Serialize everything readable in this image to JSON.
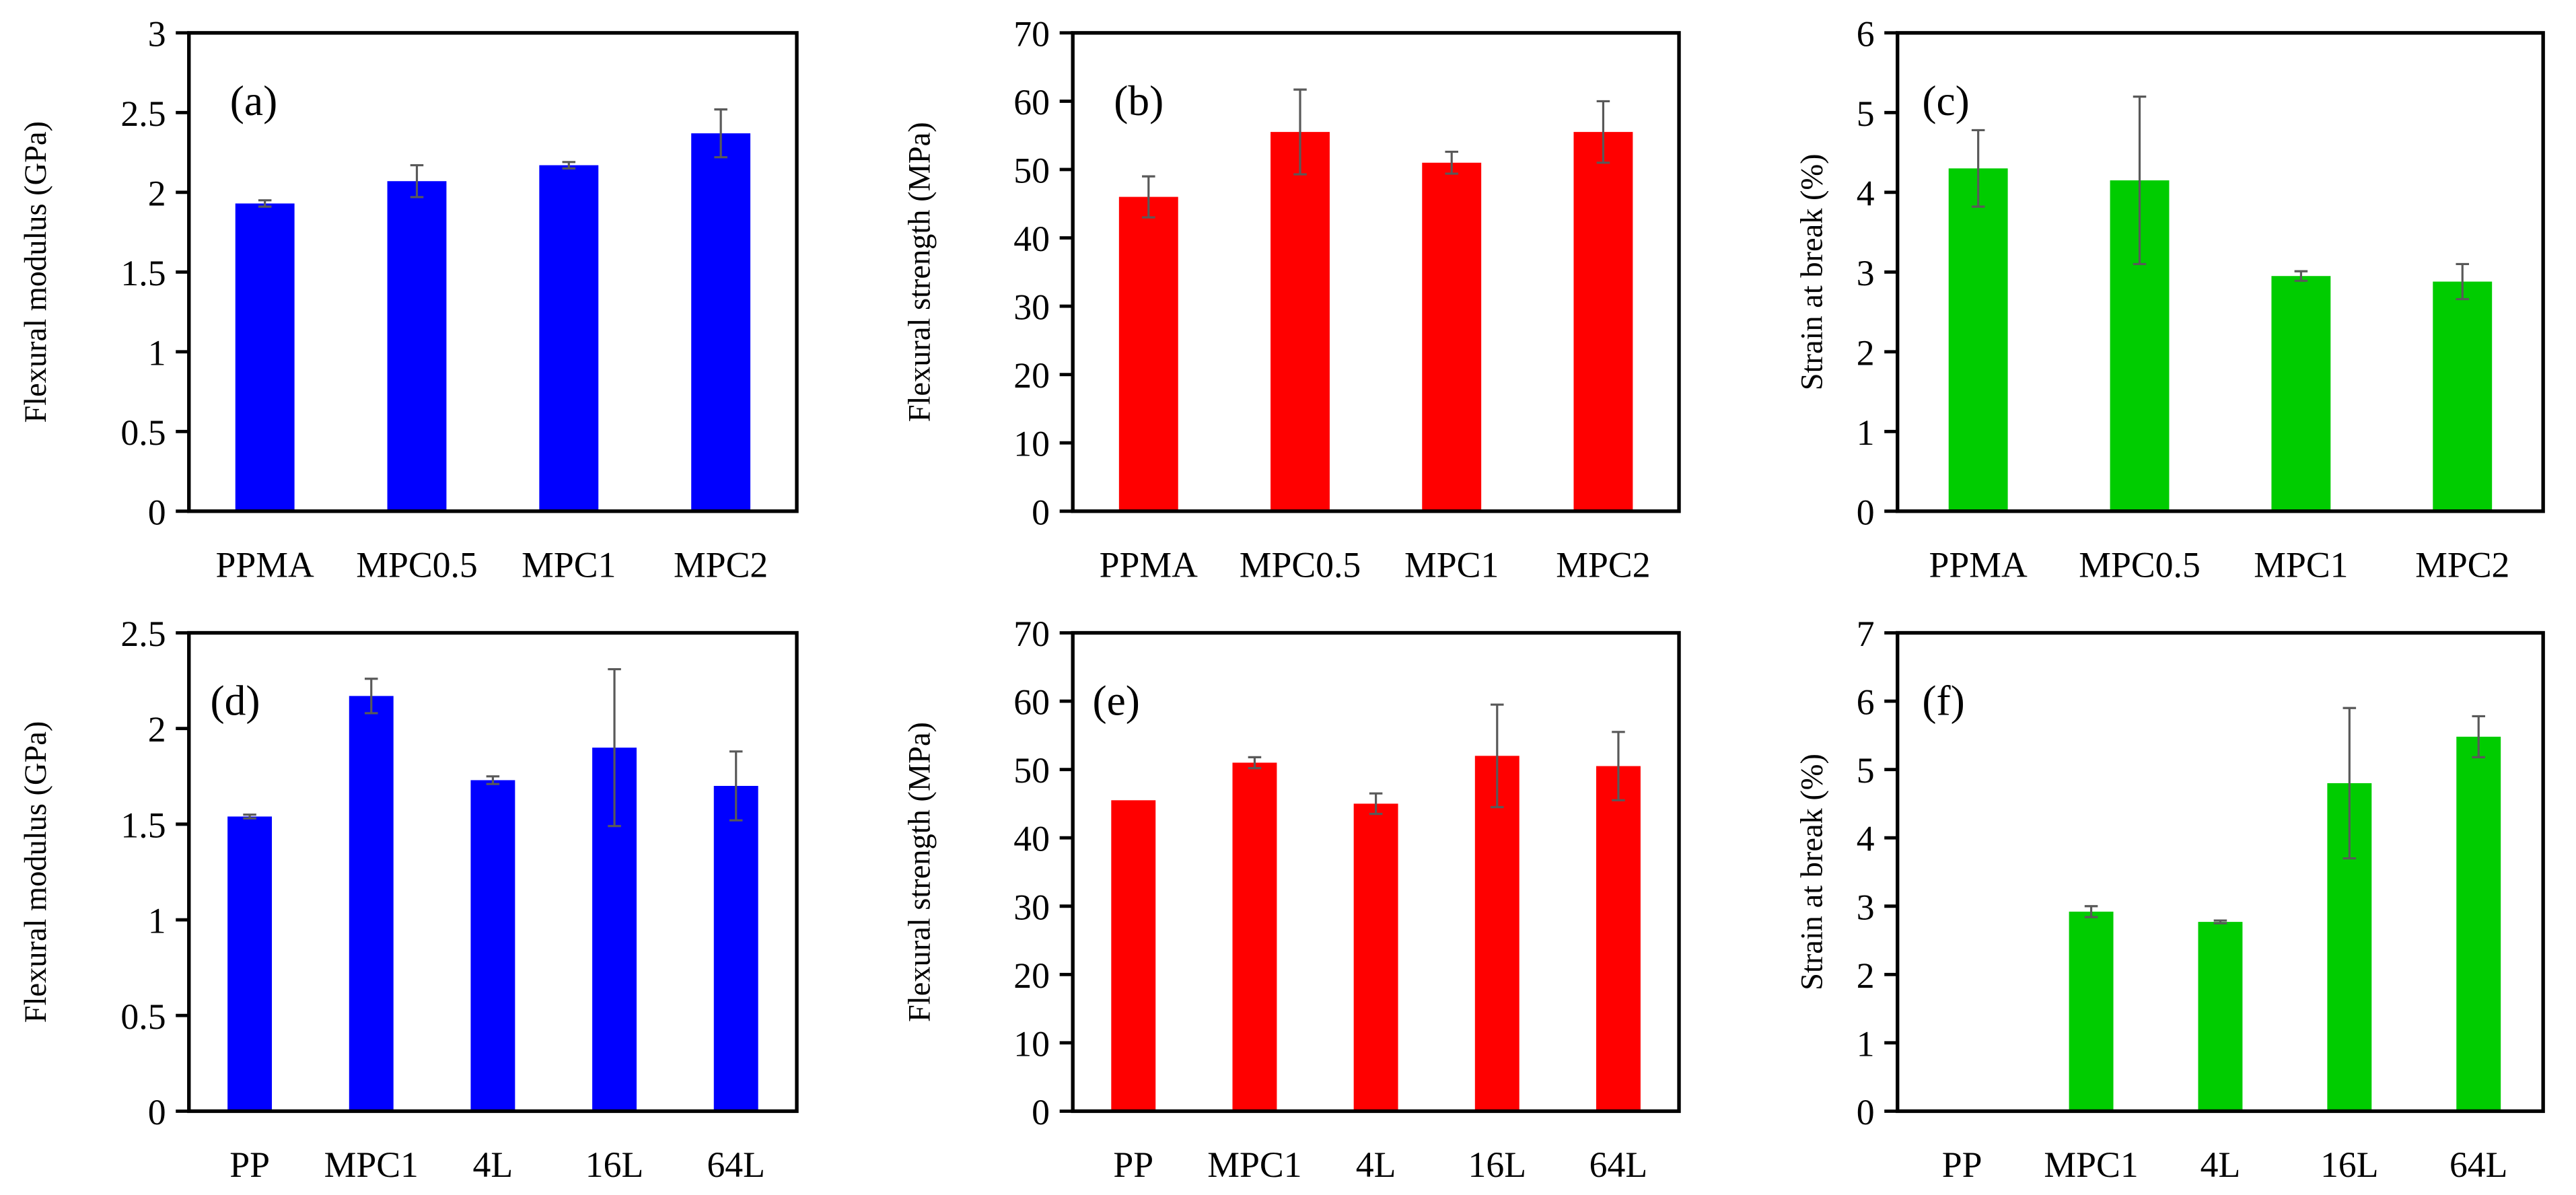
{
  "chart_data": [
    {
      "type": "bar",
      "panel_label": "(a)",
      "ylabel": "Flexural  modulus  (GPa)",
      "categories": [
        "PPMA",
        "MPC0.5",
        "MPC1",
        "MPC2"
      ],
      "values": [
        1.93,
        2.07,
        2.17,
        2.37
      ],
      "errors": [
        0.02,
        0.1,
        0.02,
        0.15
      ],
      "ylim": [
        0,
        3
      ],
      "ystep": 0.5,
      "yticks": [
        "0",
        "0.5",
        "1",
        "1.5",
        "2",
        "2.5",
        "3"
      ],
      "color": "#0000ff"
    },
    {
      "type": "bar",
      "panel_label": "(b)",
      "ylabel": "Flexural  strength  (MPa)",
      "categories": [
        "PPMA",
        "MPC0.5",
        "MPC1",
        "MPC2"
      ],
      "values": [
        46,
        55.5,
        51,
        55.5
      ],
      "errors": [
        3,
        6.2,
        1.6,
        4.5
      ],
      "ylim": [
        0,
        70
      ],
      "ystep": 10,
      "yticks": [
        "0",
        "10",
        "20",
        "30",
        "40",
        "50",
        "60",
        "70"
      ],
      "color": "#ff0000"
    },
    {
      "type": "bar",
      "panel_label": "(c)",
      "ylabel": "Strain at break (%)",
      "categories": [
        "PPMA",
        "MPC0.5",
        "MPC1",
        "MPC2"
      ],
      "values": [
        4.3,
        4.15,
        2.95,
        2.88
      ],
      "errors": [
        0.48,
        1.05,
        0.06,
        0.22
      ],
      "ylim": [
        0,
        6
      ],
      "ystep": 1,
      "yticks": [
        "0",
        "1",
        "2",
        "3",
        "4",
        "5",
        "6"
      ],
      "color": "#00cc00"
    },
    {
      "type": "bar",
      "panel_label": "(d)",
      "ylabel": "Flexural  modulus  (GPa)",
      "categories": [
        "PP",
        "MPC1",
        "4L",
        "16L",
        "64L"
      ],
      "values": [
        1.54,
        2.17,
        1.73,
        1.9,
        1.7
      ],
      "errors": [
        0.01,
        0.09,
        0.02,
        0.41,
        0.18
      ],
      "ylim": [
        0,
        2.5
      ],
      "ystep": 0.5,
      "yticks": [
        "0",
        "0.5",
        "1",
        "1.5",
        "2",
        "2.5"
      ],
      "color": "#0000ff"
    },
    {
      "type": "bar",
      "panel_label": "(e)",
      "ylabel": "Flexural  strength  (MPa)",
      "categories": [
        "PP",
        "MPC1",
        "4L",
        "16L",
        "64L"
      ],
      "values": [
        45.5,
        51,
        45,
        52,
        50.5
      ],
      "errors": [
        0,
        0.8,
        1.5,
        7.5,
        5
      ],
      "ylim": [
        0,
        70
      ],
      "ystep": 10,
      "yticks": [
        "0",
        "10",
        "20",
        "30",
        "40",
        "50",
        "60",
        "70"
      ],
      "color": "#ff0000"
    },
    {
      "type": "bar",
      "panel_label": "(f)",
      "ylabel": "Strain at break (%)",
      "categories": [
        "PP",
        "MPC1",
        "4L",
        "16L",
        "64L"
      ],
      "values": [
        0,
        2.92,
        2.77,
        4.8,
        5.48
      ],
      "errors": [
        0,
        0.08,
        0.02,
        1.1,
        0.3
      ],
      "ylim": [
        0,
        7
      ],
      "ystep": 1,
      "yticks": [
        "0",
        "1",
        "2",
        "3",
        "4",
        "5",
        "6",
        "7"
      ],
      "color": "#00cc00"
    }
  ],
  "errorbar_color": "#595959"
}
